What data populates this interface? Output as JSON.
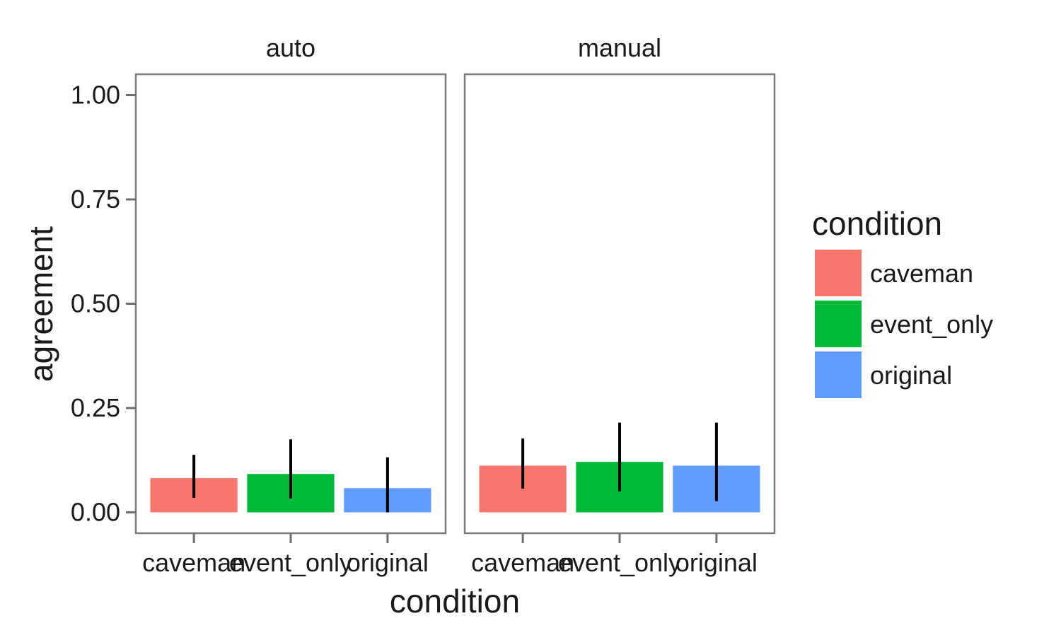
{
  "chart_data": {
    "type": "bar",
    "xlabel": "condition",
    "ylabel": "agreement",
    "ylim": [
      -0.05,
      1.05
    ],
    "y_ticks": [
      "0.00",
      "0.25",
      "0.50",
      "0.75",
      "1.00"
    ],
    "y_tick_values": [
      0,
      0.25,
      0.5,
      0.75,
      1.0
    ],
    "grid": false,
    "categories": [
      "caveman",
      "event_only",
      "original"
    ],
    "colors": {
      "caveman": "#F8766D",
      "event_only": "#00BA38",
      "original": "#619CFF",
      "panel_border": "#7a7a7a",
      "error_bar": "#000000"
    },
    "facets": [
      {
        "name": "auto",
        "values": [
          0.082,
          0.092,
          0.058
        ],
        "error_low": [
          0.035,
          0.033,
          0.0
        ],
        "error_high": [
          0.138,
          0.175,
          0.132
        ]
      },
      {
        "name": "manual",
        "values": [
          0.112,
          0.121,
          0.112
        ],
        "error_low": [
          0.057,
          0.05,
          0.027
        ],
        "error_high": [
          0.177,
          0.215,
          0.215
        ]
      }
    ],
    "legend": {
      "title": "condition",
      "position": "right",
      "entries": [
        "caveman",
        "event_only",
        "original"
      ]
    }
  }
}
